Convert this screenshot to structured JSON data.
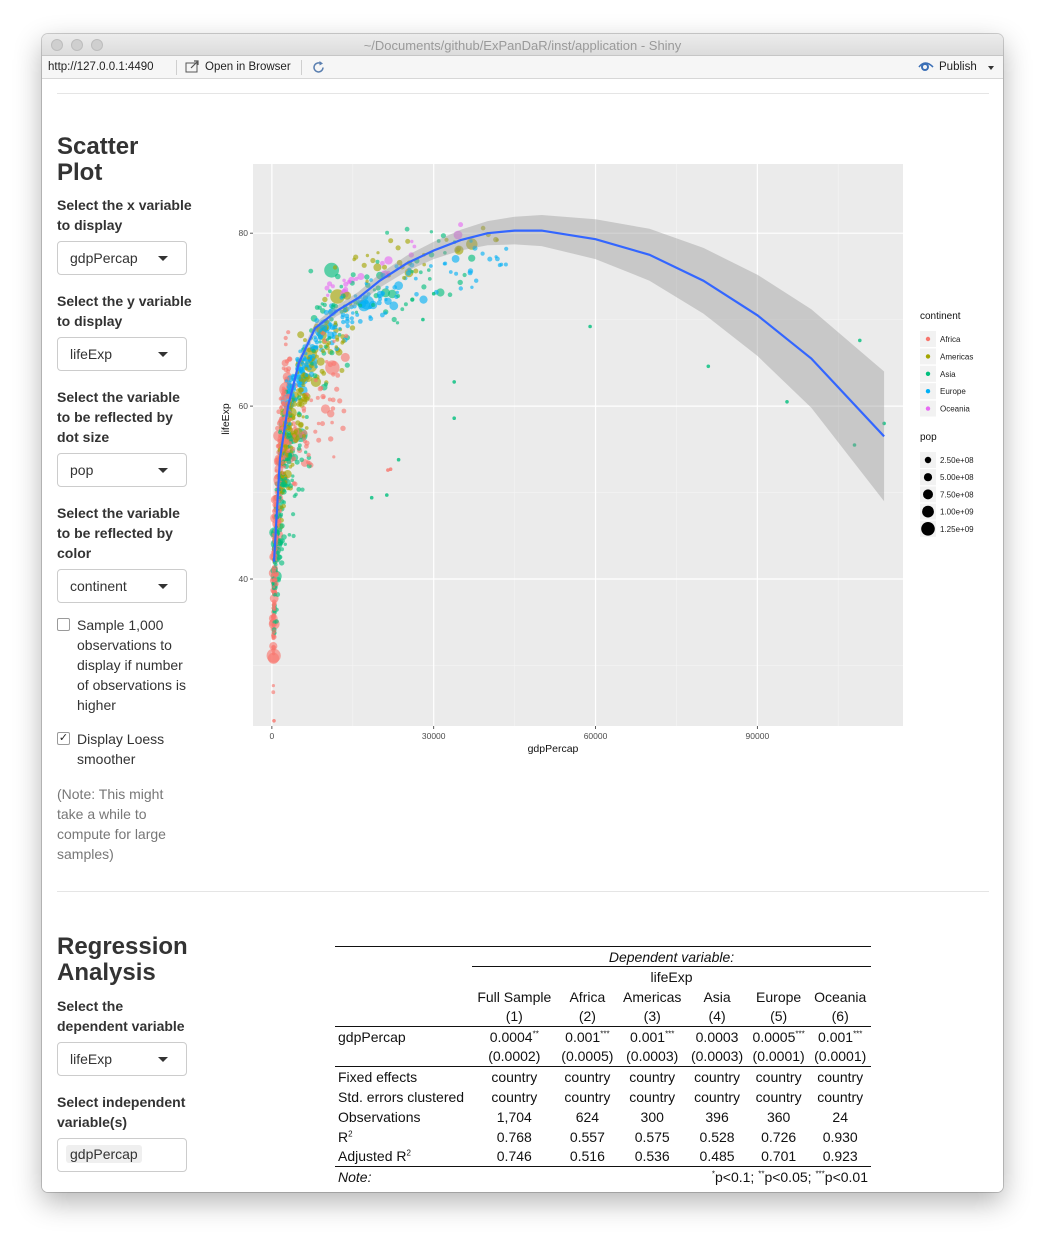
{
  "window": {
    "title": "~/Documents/github/ExPanDaR/inst/application - Shiny"
  },
  "toolbar": {
    "url": "http://127.0.0.1:4490",
    "open_in_browser": "Open in Browser",
    "publish": "Publish"
  },
  "scatter": {
    "title": "Scatter Plot",
    "x_label": "Select the x variable to display",
    "x_value": "gdpPercap",
    "y_label": "Select the y variable to display",
    "y_value": "lifeExp",
    "size_label": "Select the variable to be reflected by dot size",
    "size_value": "pop",
    "color_label": "Select the variable to be reflected by color",
    "color_value": "continent",
    "sample_label": "Sample 1,000 observations to display if number of observations is higher",
    "sample_checked": false,
    "loess_label": "Display Loess smoother",
    "loess_checked": true,
    "note": "(Note: This might take a while to compute for large samples)"
  },
  "chart_data": {
    "type": "scatter",
    "title": "",
    "xlabel": "gdpPercap",
    "ylabel": "lifeExp",
    "xlim": [
      -3500,
      117000
    ],
    "ylim": [
      23,
      88
    ],
    "x_ticks": [
      0,
      30000,
      60000,
      90000
    ],
    "x_tick_labels": [
      "0",
      "30000",
      "60000",
      "90000"
    ],
    "y_ticks": [
      40,
      60,
      80
    ],
    "y_tick_labels": [
      "40",
      "60",
      "80"
    ],
    "grid": true,
    "legend_color": {
      "title": "continent",
      "entries": [
        {
          "name": "Africa",
          "color": "#f8766d"
        },
        {
          "name": "Americas",
          "color": "#a3a500"
        },
        {
          "name": "Asia",
          "color": "#00bf7d"
        },
        {
          "name": "Europe",
          "color": "#00b0f6"
        },
        {
          "name": "Oceania",
          "color": "#e76bf3"
        }
      ]
    },
    "legend_size": {
      "title": "pop",
      "entries": [
        "2.50e+08",
        "5.00e+08",
        "7.50e+08",
        "1.00e+09",
        "1.25e+09"
      ]
    },
    "loess": {
      "x": [
        400,
        1500,
        3000,
        5000,
        8000,
        12000,
        16000,
        20000,
        25000,
        30000,
        35000,
        40000,
        45000,
        50000,
        60000,
        70000,
        80000,
        90000,
        100000,
        113500
      ],
      "y": [
        42,
        54,
        60,
        65,
        69,
        71,
        72.5,
        74.5,
        76.5,
        78,
        79.2,
        80,
        80.3,
        80.3,
        79.3,
        77.5,
        74.5,
        70.5,
        65.5,
        56.5
      ],
      "band_width": [
        1.2,
        0.8,
        0.7,
        0.6,
        0.6,
        0.6,
        0.7,
        0.8,
        0.9,
        1.0,
        1.2,
        1.4,
        1.6,
        1.8,
        2.3,
        3.0,
        3.8,
        4.7,
        5.7,
        7.5
      ]
    },
    "outlier_points": [
      {
        "x": 59000,
        "y": 69.2,
        "c": "Asia"
      },
      {
        "x": 80900,
        "y": 64.6,
        "c": "Asia"
      },
      {
        "x": 95500,
        "y": 60.5,
        "c": "Asia"
      },
      {
        "x": 109000,
        "y": 67.6,
        "c": "Asia"
      },
      {
        "x": 108000,
        "y": 55.5,
        "c": "Asia"
      },
      {
        "x": 113500,
        "y": 58.0,
        "c": "Asia"
      },
      {
        "x": 33800,
        "y": 58.6,
        "c": "Asia"
      },
      {
        "x": 33800,
        "y": 62.8,
        "c": "Asia"
      },
      {
        "x": 23500,
        "y": 53.8,
        "c": "Asia"
      },
      {
        "x": 21300,
        "y": 49.7,
        "c": "Asia"
      },
      {
        "x": 18500,
        "y": 49.4,
        "c": "Asia"
      },
      {
        "x": 22000,
        "y": 52.7,
        "c": "Africa"
      },
      {
        "x": 21500,
        "y": 52.6,
        "c": "Africa"
      },
      {
        "x": 30000,
        "y": 73.0,
        "c": "Asia"
      },
      {
        "x": 28000,
        "y": 70.0,
        "c": "Asia"
      },
      {
        "x": 400,
        "y": 23.6,
        "c": "Africa"
      }
    ]
  },
  "regression": {
    "title": "Regression Analysis",
    "dep_label": "Select the dependent variable",
    "dep_value": "lifeExp",
    "indep_label": "Select independent variable(s)",
    "indep_value": "gdpPercap",
    "table": {
      "dependent_variable": "Dependent variable:",
      "dep_name": "lifeExp",
      "columns": [
        "Full Sample",
        "Africa",
        "Americas",
        "Asia",
        "Europe",
        "Oceania"
      ],
      "column_numbers": [
        "(1)",
        "(2)",
        "(3)",
        "(4)",
        "(5)",
        "(6)"
      ],
      "coef_label": "gdpPercap",
      "coef": [
        "0.0004",
        "0.001",
        "0.001",
        "0.0003",
        "0.0005",
        "0.001"
      ],
      "coef_stars": [
        "**",
        "***",
        "***",
        "",
        "***",
        "***"
      ],
      "se": [
        "(0.0002)",
        "(0.0005)",
        "(0.0003)",
        "(0.0003)",
        "(0.0001)",
        "(0.0001)"
      ],
      "stats": [
        {
          "label": "Fixed effects",
          "values": [
            "country",
            "country",
            "country",
            "country",
            "country",
            "country"
          ]
        },
        {
          "label": "Std. errors clustered",
          "values": [
            "country",
            "country",
            "country",
            "country",
            "country",
            "country"
          ]
        },
        {
          "label": "Observations",
          "values": [
            "1,704",
            "624",
            "300",
            "396",
            "360",
            "24"
          ]
        },
        {
          "label": "R",
          "sup": "2",
          "values": [
            "0.768",
            "0.557",
            "0.575",
            "0.528",
            "0.726",
            "0.930"
          ]
        },
        {
          "label": "Adjusted R",
          "sup": "2",
          "values": [
            "0.746",
            "0.516",
            "0.536",
            "0.485",
            "0.701",
            "0.923"
          ]
        }
      ],
      "note_label": "Note:",
      "note_parts": [
        {
          "sup": "*",
          "text": "p<0.1; "
        },
        {
          "sup": "**",
          "text": "p<0.05; "
        },
        {
          "sup": "***",
          "text": "p<0.01"
        }
      ]
    }
  }
}
